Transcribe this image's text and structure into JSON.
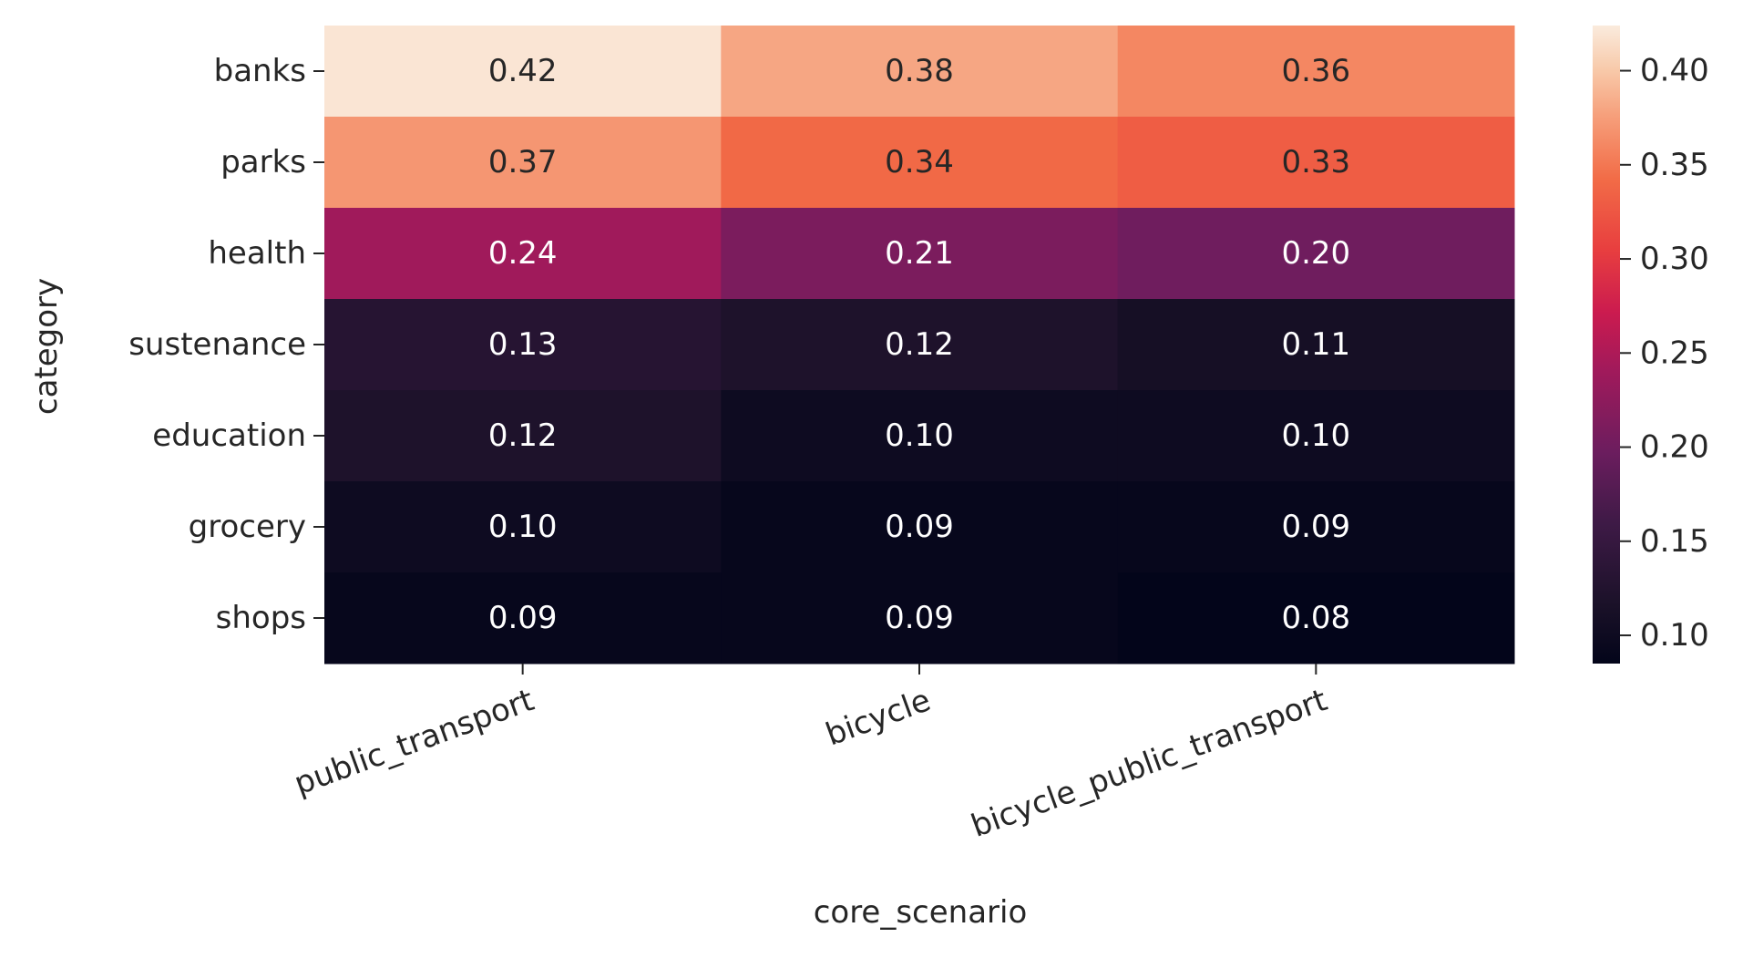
{
  "chart_data": {
    "type": "heatmap",
    "xlabel": "core_scenario",
    "ylabel": "category",
    "x_categories": [
      "public_transport",
      "bicycle",
      "bicycle_public_transport"
    ],
    "y_categories": [
      "banks",
      "parks",
      "health",
      "sustenance",
      "education",
      "grocery",
      "shops"
    ],
    "values": [
      [
        0.42,
        0.38,
        0.36
      ],
      [
        0.37,
        0.34,
        0.33
      ],
      [
        0.24,
        0.21,
        0.2
      ],
      [
        0.13,
        0.12,
        0.11
      ],
      [
        0.12,
        0.1,
        0.1
      ],
      [
        0.1,
        0.09,
        0.09
      ],
      [
        0.09,
        0.09,
        0.08
      ]
    ],
    "annotation_format": "0.00",
    "colormap": "rocket",
    "colorbar": {
      "range": [
        0.085,
        0.424
      ],
      "ticks": [
        0.1,
        0.15,
        0.2,
        0.25,
        0.3,
        0.35,
        0.4
      ],
      "tick_labels": [
        "0.10",
        "0.15",
        "0.20",
        "0.25",
        "0.30",
        "0.35",
        "0.40"
      ],
      "placement": "right"
    },
    "grid": false,
    "legend": "none"
  }
}
